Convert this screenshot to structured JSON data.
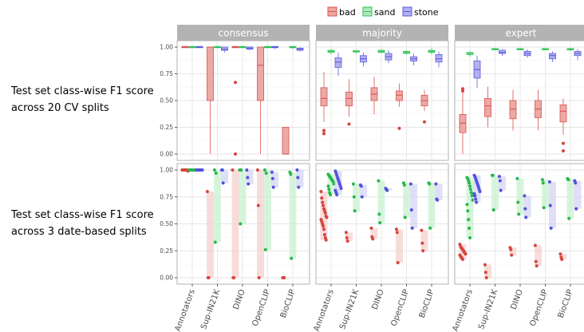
{
  "row_labels": [
    [
      "Test set class-wise F1 score",
      "across 20 CV splits"
    ],
    [
      "Test set class-wise F1 score",
      "across 3 date-based splits"
    ]
  ],
  "chart_data": {
    "type": "box-and-strip faceted",
    "facets_columns": [
      "consensus",
      "majority",
      "expert"
    ],
    "categories": [
      "Annotators",
      "Sup-IN21K",
      "DINO",
      "OpenCLIP",
      "BioCLIP"
    ],
    "legend": {
      "position": "top",
      "entries": [
        "bad",
        "sand",
        "stone"
      ]
    },
    "colors": {
      "bad": {
        "stroke": "#d9534f",
        "fill": "#eca9a5",
        "point": "#d7453f",
        "range": "#f6d0cd"
      },
      "sand": {
        "stroke": "#2ec255",
        "fill": "#aee9b9",
        "point": "#27b84a",
        "range": "#c9f2d2"
      },
      "stone": {
        "stroke": "#5d5ddb",
        "fill": "#b1b1f0",
        "point": "#5252e0",
        "range": "#d4d4f6"
      }
    },
    "y_axis": {
      "ylim": [
        0,
        1
      ],
      "ticks": [
        "0.00",
        "0.25",
        "0.50",
        "0.75",
        "1.00"
      ],
      "tick_values": [
        0,
        0.25,
        0.5,
        0.75,
        1
      ]
    },
    "row1_boxplots": {
      "consensus": {
        "Annotators": {
          "bad": [
            1,
            1,
            1,
            1,
            1
          ],
          "sand": [
            1,
            1,
            1,
            1,
            1
          ],
          "stone": [
            1,
            1,
            1,
            1,
            1
          ]
        },
        "Sup-IN21K": {
          "bad": [
            0,
            0.5,
            1,
            1,
            1
          ],
          "sand": [
            1,
            1,
            1,
            1,
            1
          ],
          "stone": [
            0.95,
            0.97,
            0.98,
            1,
            1
          ]
        },
        "DINO": {
          "bad": [
            1,
            1,
            1,
            1,
            1
          ],
          "bad_outliers": [
            0.67,
            0
          ],
          "sand": [
            1,
            1,
            1,
            1,
            1
          ],
          "stone": [
            0.97,
            0.98,
            0.99,
            1,
            1
          ]
        },
        "OpenCLIP": {
          "bad": [
            0,
            0.5,
            0.83,
            1,
            1
          ],
          "sand": [
            1,
            1,
            1,
            1,
            1
          ],
          "stone": [
            0.98,
            0.99,
            1,
            1,
            1
          ]
        },
        "BioCLIP": {
          "bad": [
            0,
            0,
            0,
            0.25,
            0.25
          ],
          "sand": [
            0.98,
            0.99,
            1,
            1,
            1
          ],
          "stone": [
            0.96,
            0.97,
            0.98,
            0.99,
            1
          ]
        }
      },
      "majority": {
        "Annotators": {
          "bad": [
            0.3,
            0.45,
            0.52,
            0.62,
            0.77
          ],
          "bad_outliers": [
            0.22,
            0.19
          ],
          "sand": [
            0.93,
            0.95,
            0.96,
            0.97,
            0.98
          ],
          "stone": [
            0.73,
            0.81,
            0.86,
            0.9,
            0.95
          ]
        },
        "Sup-IN21K": {
          "bad": [
            0.35,
            0.45,
            0.52,
            0.58,
            0.7
          ],
          "bad_outliers": [
            0.28
          ],
          "sand": [
            0.94,
            0.95,
            0.96,
            0.96,
            0.97
          ],
          "stone": [
            0.82,
            0.86,
            0.89,
            0.92,
            0.95
          ]
        },
        "DINO": {
          "bad": [
            0.37,
            0.5,
            0.56,
            0.62,
            0.72
          ],
          "sand": [
            0.94,
            0.95,
            0.96,
            0.97,
            0.98
          ],
          "stone": [
            0.85,
            0.88,
            0.91,
            0.94,
            0.97
          ]
        },
        "OpenCLIP": {
          "bad": [
            0.44,
            0.5,
            0.55,
            0.59,
            0.66
          ],
          "bad_outliers": [
            0.24
          ],
          "sand": [
            0.93,
            0.94,
            0.95,
            0.96,
            0.97
          ],
          "stone": [
            0.83,
            0.87,
            0.89,
            0.91,
            0.94
          ]
        },
        "BioCLIP": {
          "bad": [
            0.4,
            0.45,
            0.5,
            0.55,
            0.6
          ],
          "bad_outliers": [
            0.3
          ],
          "sand": [
            0.93,
            0.95,
            0.96,
            0.97,
            0.99
          ],
          "stone": [
            0.81,
            0.86,
            0.89,
            0.93,
            0.96
          ]
        }
      },
      "expert": {
        "Annotators": {
          "bad": [
            0.0,
            0.2,
            0.29,
            0.37,
            0.58
          ],
          "bad_outliers": [
            0.61,
            0.59
          ],
          "sand": [
            0.91,
            0.93,
            0.94,
            0.95,
            0.96
          ],
          "stone": [
            0.62,
            0.71,
            0.79,
            0.87,
            0.92
          ]
        },
        "Sup-IN21K": {
          "bad": [
            0.25,
            0.35,
            0.45,
            0.52,
            0.63
          ],
          "sand": [
            0.97,
            0.97,
            0.98,
            0.98,
            0.99
          ],
          "stone": [
            0.92,
            0.94,
            0.95,
            0.97,
            0.98
          ]
        },
        "DINO": {
          "bad": [
            0.22,
            0.33,
            0.42,
            0.5,
            0.6
          ],
          "sand": [
            0.97,
            0.97,
            0.98,
            0.98,
            0.99
          ],
          "stone": [
            0.9,
            0.92,
            0.94,
            0.96,
            0.98
          ]
        },
        "OpenCLIP": {
          "bad": [
            0.22,
            0.34,
            0.42,
            0.5,
            0.6
          ],
          "sand": [
            0.97,
            0.97,
            0.98,
            0.98,
            0.99
          ],
          "stone": [
            0.86,
            0.89,
            0.92,
            0.94,
            0.96
          ]
        },
        "BioCLIP": {
          "bad": [
            0.18,
            0.3,
            0.4,
            0.46,
            0.52
          ],
          "bad_outliers": [
            0.1,
            0.03
          ],
          "sand": [
            0.96,
            0.97,
            0.98,
            0.98,
            0.99
          ],
          "stone": [
            0.88,
            0.92,
            0.94,
            0.96,
            0.98
          ]
        }
      }
    },
    "row2_points": {
      "consensus": {
        "Annotators": {
          "bad": [
            1,
            1,
            1,
            1,
            1,
            1,
            1,
            1,
            0.99,
            1,
            1,
            1
          ],
          "sand": [
            1,
            1,
            1,
            1,
            1,
            1,
            1,
            1,
            1,
            1,
            1
          ],
          "stone": [
            1,
            1,
            1,
            1,
            1,
            1,
            1,
            1,
            1,
            1,
            1
          ]
        },
        "Sup-IN21K": {
          "bad": [
            0.8,
            0,
            0
          ],
          "sand": [
            1,
            0.33,
            0.97
          ],
          "stone": [
            1,
            1,
            0.88
          ]
        },
        "DINO": {
          "bad": [
            1,
            0,
            0
          ],
          "sand": [
            1,
            0.5,
            1
          ],
          "stone": [
            1,
            0.93,
            0.87
          ]
        },
        "OpenCLIP": {
          "bad": [
            1,
            0.67,
            0
          ],
          "sand": [
            1,
            0.26,
            0.97
          ],
          "stone": [
            0.98,
            0.92,
            0.84
          ]
        },
        "BioCLIP": {
          "bad": [
            0,
            0,
            0
          ],
          "sand": [
            0.98,
            0.96,
            0.18
          ],
          "stone": [
            1,
            0.93,
            0.84
          ]
        }
      },
      "majority": {
        "Annotators": {
          "bad": [
            0.8,
            0.74,
            0.7,
            0.67,
            0.64,
            0.62,
            0.6,
            0.57,
            0.56,
            0.54,
            0.52,
            0.5,
            0.48,
            0.45,
            0.4,
            0.37,
            0.35
          ],
          "sand": [
            0.96,
            0.95,
            0.94,
            0.93,
            0.92,
            0.91,
            0.9,
            0.89,
            0.87,
            0.85,
            0.82,
            0.79,
            0.77
          ],
          "stone": [
            0.99,
            0.97,
            0.95,
            0.93,
            0.91,
            0.89,
            0.87,
            0.85,
            0.83,
            0.81,
            0.79,
            0.77
          ]
        },
        "Sup-IN21K": {
          "bad": [
            0.42,
            0.37,
            0.34
          ],
          "sand": [
            0.87,
            0.75,
            0.62
          ],
          "stone": [
            0.86,
            0.85,
            0.75
          ]
        },
        "DINO": {
          "bad": [
            0.46,
            0.38,
            0.36
          ],
          "sand": [
            0.9,
            0.59,
            0.51
          ],
          "stone": [
            0.83,
            0.82,
            0.81
          ]
        },
        "OpenCLIP": {
          "bad": [
            0.45,
            0.42,
            0.14
          ],
          "sand": [
            0.88,
            0.86,
            0.56
          ],
          "stone": [
            0.87,
            0.63,
            0.46
          ]
        },
        "BioCLIP": {
          "bad": [
            0.44,
            0.32,
            0.25
          ],
          "sand": [
            0.88,
            0.87,
            0.46
          ],
          "stone": [
            0.87,
            0.73,
            0.72
          ]
        }
      },
      "expert": {
        "Annotators": {
          "bad": [
            0.31,
            0.29,
            0.28,
            0.27,
            0.26,
            0.25,
            0.24,
            0.23,
            0.22,
            0.21,
            0.2,
            0.19,
            0.18,
            0.17
          ],
          "sand": [
            0.93,
            0.92,
            0.9,
            0.88,
            0.85,
            0.82,
            0.79,
            0.76,
            0.72,
            0.68,
            0.62,
            0.54,
            0.46,
            0.37
          ],
          "stone": [
            0.95,
            0.94,
            0.92,
            0.9,
            0.88,
            0.86,
            0.84,
            0.82,
            0.8,
            0.78,
            0.76,
            0.73,
            0.7
          ]
        },
        "Sup-IN21K": {
          "bad": [
            0.12,
            0.05,
            0.0
          ],
          "sand": [
            0.95,
            0.95,
            0.63
          ],
          "stone": [
            0.94,
            0.9,
            0.81
          ]
        },
        "DINO": {
          "bad": [
            0.28,
            0.26,
            0.21
          ],
          "sand": [
            0.92,
            0.7,
            0.59
          ],
          "stone": [
            0.76,
            0.64,
            0.56
          ]
        },
        "OpenCLIP": {
          "bad": [
            0.3,
            0.15,
            0.11
          ],
          "sand": [
            0.91,
            0.88,
            0.65
          ],
          "stone": [
            0.89,
            0.67,
            0.46
          ]
        },
        "BioCLIP": {
          "bad": [
            0.22,
            0.19,
            0.17
          ],
          "sand": [
            0.92,
            0.91,
            0.55
          ],
          "stone": [
            0.9,
            0.88,
            0.64
          ]
        }
      }
    }
  }
}
